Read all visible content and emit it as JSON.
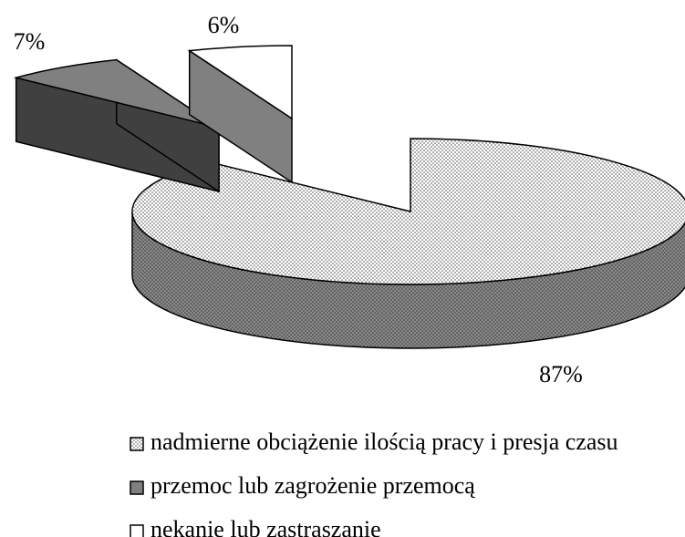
{
  "chart_data": {
    "type": "pie3d",
    "categories": [
      "nadmierne obciążenie ilością pracy i presja czasu",
      "przemoc lub zagrożenie przemocą",
      "nękanie lub zastraszanie"
    ],
    "values": [
      87,
      7,
      6
    ],
    "value_labels": [
      "87%",
      "7%",
      "6%"
    ],
    "colors": [
      "#e6e6e6",
      "#808080",
      "#ffffff"
    ],
    "legend": "bottom"
  }
}
